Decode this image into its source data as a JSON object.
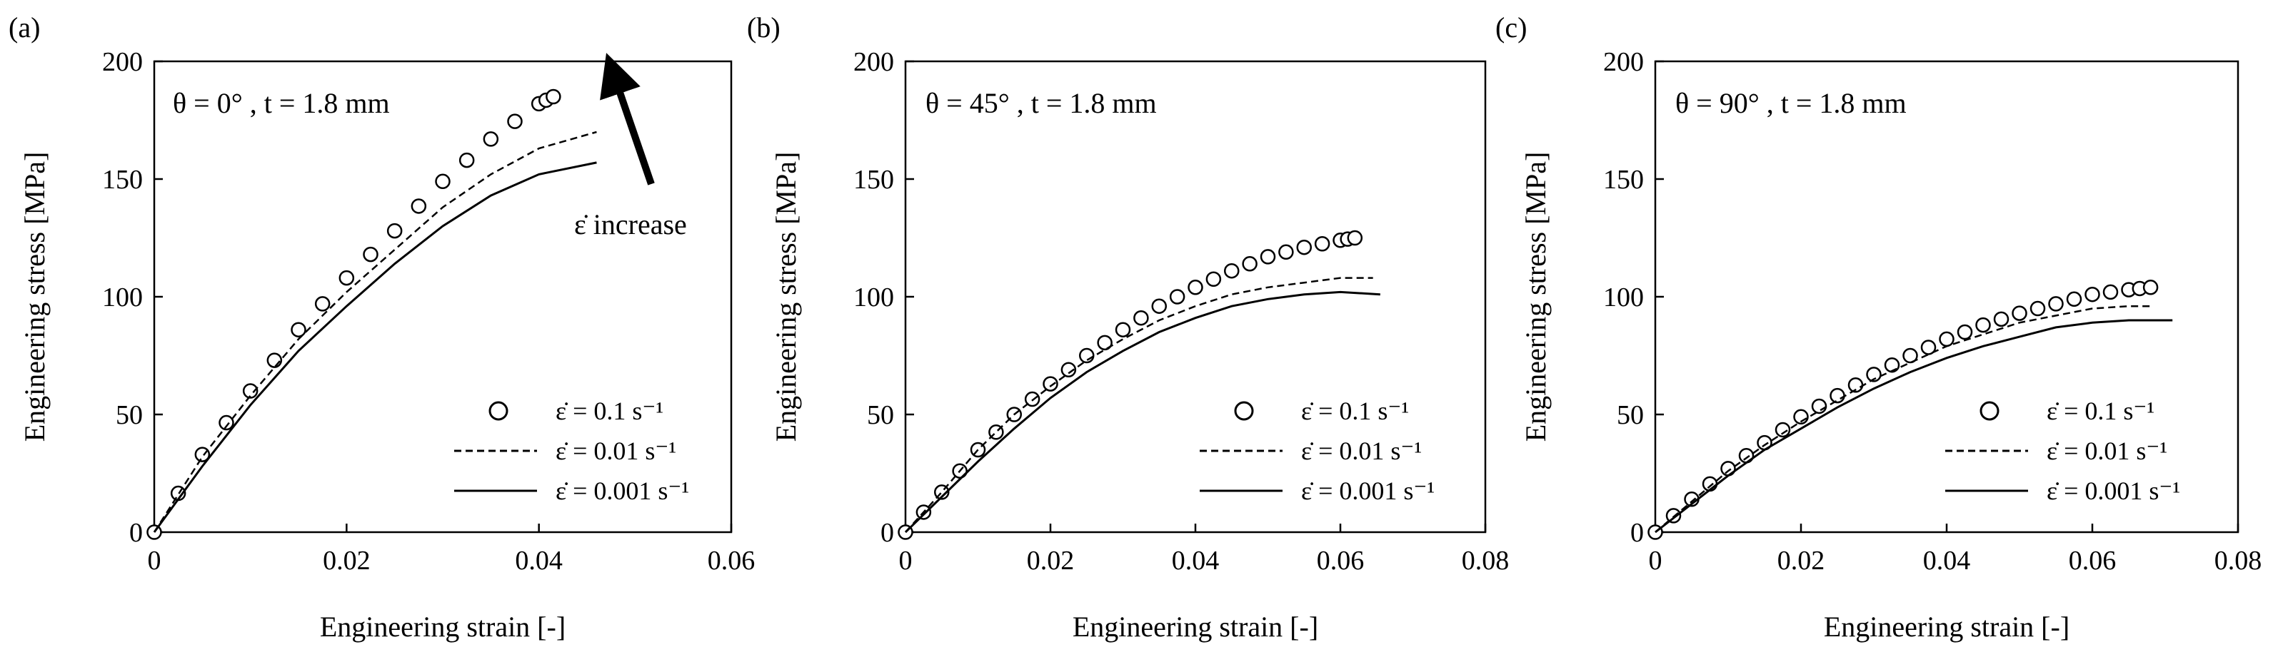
{
  "figure": {
    "arrow_annotation": "ε̇ increase",
    "colors": {
      "ink": "#000000",
      "background": "#ffffff"
    }
  },
  "legend_labels": {
    "rate_01": "ε̇ = 0.1 s⁻¹",
    "rate_001": "ε̇ = 0.01 s⁻¹",
    "rate_0001": "ε̇ = 0.001 s⁻¹"
  },
  "chart_data": [
    {
      "type": "line",
      "panel": "(a)",
      "annotation": "θ = 0° , t = 1.8 mm",
      "xlabel": "Engineering strain [-]",
      "ylabel": "Engineering stress [MPa]",
      "xlim": [
        0,
        0.06
      ],
      "ylim": [
        0,
        200
      ],
      "xticks": [
        0,
        0.02,
        0.04,
        0.06
      ],
      "xtick_labels": [
        "0",
        "0.02",
        "0.04",
        "0.06"
      ],
      "yticks": [
        0,
        50,
        100,
        150,
        200
      ],
      "ytick_labels": [
        "0",
        "50",
        "100",
        "150",
        "200"
      ],
      "series": [
        {
          "name": "ε̇ = 0.1 s⁻¹",
          "style": "circles",
          "x": [
            0,
            0.005,
            0.01,
            0.015,
            0.02,
            0.025,
            0.03,
            0.035,
            0.04,
            0.0415
          ],
          "y": [
            0,
            33,
            60,
            86,
            108,
            128,
            149,
            167,
            182,
            185
          ]
        },
        {
          "name": "ε̇ = 0.01 s⁻¹",
          "style": "dashed",
          "x": [
            0,
            0.005,
            0.01,
            0.015,
            0.02,
            0.025,
            0.03,
            0.035,
            0.04,
            0.046
          ],
          "y": [
            0,
            32,
            58,
            82,
            102,
            120,
            138,
            152,
            163,
            170
          ]
        },
        {
          "name": "ε̇ = 0.001 s⁻¹",
          "style": "solid",
          "x": [
            0,
            0.005,
            0.01,
            0.015,
            0.02,
            0.025,
            0.03,
            0.035,
            0.04,
            0.046
          ],
          "y": [
            0,
            28,
            54,
            77,
            96,
            114,
            130,
            143,
            152,
            157
          ]
        }
      ]
    },
    {
      "type": "line",
      "panel": "(b)",
      "annotation": "θ = 45° , t = 1.8 mm",
      "xlabel": "Engineering strain [-]",
      "ylabel": "Engineering stress [MPa]",
      "xlim": [
        0,
        0.08
      ],
      "ylim": [
        0,
        200
      ],
      "xticks": [
        0,
        0.02,
        0.04,
        0.06,
        0.08
      ],
      "xtick_labels": [
        "0",
        "0.02",
        "0.04",
        "0.06",
        "0.08"
      ],
      "yticks": [
        0,
        50,
        100,
        150,
        200
      ],
      "ytick_labels": [
        "0",
        "50",
        "100",
        "150",
        "200"
      ],
      "series": [
        {
          "name": "ε̇ = 0.1 s⁻¹",
          "style": "circles",
          "x": [
            0,
            0.005,
            0.01,
            0.015,
            0.02,
            0.025,
            0.03,
            0.035,
            0.04,
            0.045,
            0.05,
            0.055,
            0.06,
            0.062
          ],
          "y": [
            0,
            17,
            35,
            50,
            63,
            75,
            86,
            96,
            104,
            111,
            117,
            121,
            124,
            125
          ]
        },
        {
          "name": "ε̇ = 0.01 s⁻¹",
          "style": "dashed",
          "x": [
            0,
            0.005,
            0.01,
            0.015,
            0.02,
            0.025,
            0.03,
            0.035,
            0.04,
            0.045,
            0.05,
            0.055,
            0.06,
            0.0645
          ],
          "y": [
            0,
            17,
            35,
            50,
            62,
            73,
            82,
            90,
            96,
            101,
            104,
            106,
            108,
            108
          ]
        },
        {
          "name": "ε̇ = 0.001 s⁻¹",
          "style": "solid",
          "x": [
            0,
            0.005,
            0.01,
            0.015,
            0.02,
            0.025,
            0.03,
            0.035,
            0.04,
            0.045,
            0.05,
            0.055,
            0.06,
            0.0655
          ],
          "y": [
            0,
            15,
            30,
            44,
            57,
            68,
            77,
            85,
            91,
            96,
            99,
            101,
            102,
            101
          ]
        }
      ]
    },
    {
      "type": "line",
      "panel": "(c)",
      "annotation": "θ = 90° , t = 1.8 mm",
      "xlabel": "Engineering strain [-]",
      "ylabel": "Engineering stress [MPa]",
      "xlim": [
        0,
        0.08
      ],
      "ylim": [
        0,
        200
      ],
      "xticks": [
        0,
        0.02,
        0.04,
        0.06,
        0.08
      ],
      "xtick_labels": [
        "0",
        "0.02",
        "0.04",
        "0.06",
        "0.08"
      ],
      "yticks": [
        0,
        50,
        100,
        150,
        200
      ],
      "ytick_labels": [
        "0",
        "50",
        "100",
        "150",
        "200"
      ],
      "series": [
        {
          "name": "ε̇ = 0.1 s⁻¹",
          "style": "circles",
          "x": [
            0,
            0.005,
            0.01,
            0.015,
            0.02,
            0.025,
            0.03,
            0.035,
            0.04,
            0.045,
            0.05,
            0.055,
            0.06,
            0.065,
            0.068
          ],
          "y": [
            0,
            14,
            27,
            38,
            49,
            58,
            67,
            75,
            82,
            88,
            93,
            97,
            101,
            103,
            104
          ]
        },
        {
          "name": "ε̇ = 0.01 s⁻¹",
          "style": "dashed",
          "x": [
            0,
            0.005,
            0.01,
            0.015,
            0.02,
            0.025,
            0.03,
            0.035,
            0.04,
            0.045,
            0.05,
            0.055,
            0.06,
            0.065,
            0.068
          ],
          "y": [
            0,
            13,
            26,
            37,
            47,
            56,
            65,
            72,
            79,
            84,
            89,
            92,
            95,
            96,
            96
          ]
        },
        {
          "name": "ε̇ = 0.001 s⁻¹",
          "style": "solid",
          "x": [
            0,
            0.005,
            0.01,
            0.015,
            0.02,
            0.025,
            0.03,
            0.035,
            0.04,
            0.045,
            0.05,
            0.055,
            0.06,
            0.065,
            0.071
          ],
          "y": [
            0,
            12,
            24,
            35,
            44,
            53,
            61,
            68,
            74,
            79,
            83,
            87,
            89,
            90,
            90
          ]
        }
      ]
    }
  ]
}
